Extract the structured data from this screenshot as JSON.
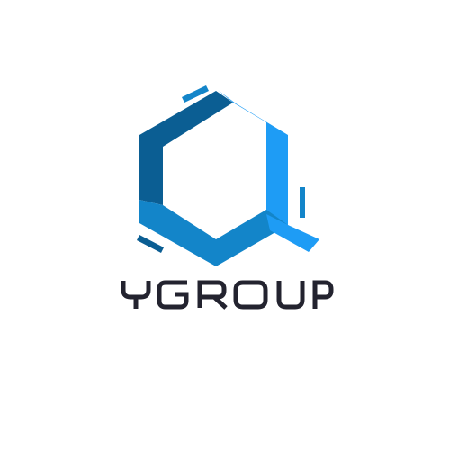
{
  "brand": {
    "name": "YGROUP",
    "colors": {
      "background": "#ffffff",
      "dark_blue": "#0b5e93",
      "mid_blue": "#1385c9",
      "light_blue": "#1e9cf5",
      "text": "#23232f"
    }
  },
  "logo": {
    "icon": "hexagon-q-icon",
    "wordmark_icon": "ygroup-wordmark-icon"
  }
}
